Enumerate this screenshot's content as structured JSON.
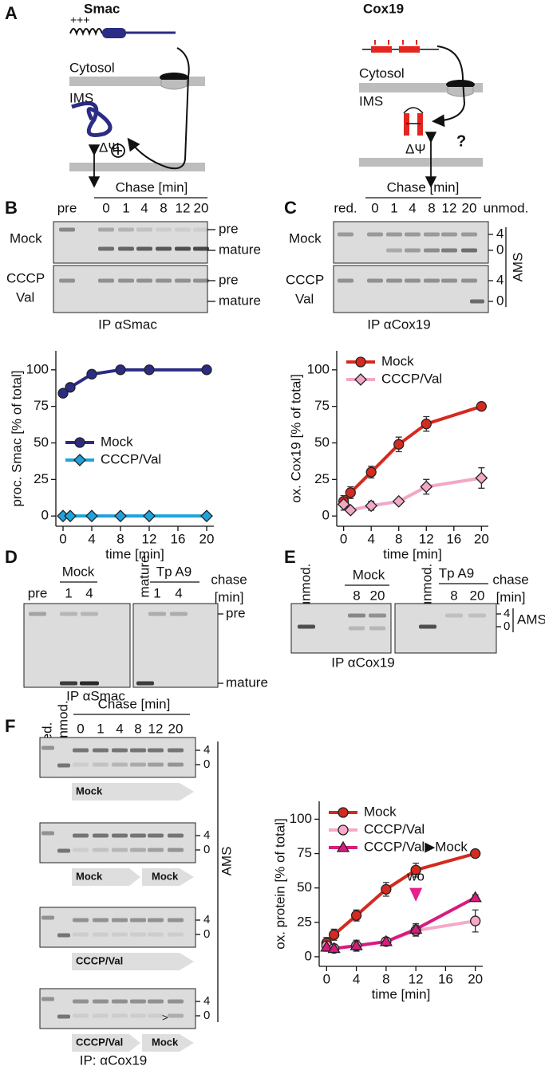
{
  "panels": {
    "A": {
      "label": "A",
      "smac": {
        "title": "Smac",
        "charge": "+++",
        "cytosol": "Cytosol",
        "ims": "IMS",
        "potential": "ΔΨ"
      },
      "cox19": {
        "title": "Cox19",
        "cytosol": "Cytosol",
        "ims": "IMS",
        "potential": "ΔΨ",
        "question": "?"
      }
    },
    "B": {
      "label": "B",
      "chase": "Chase [min]",
      "lanes": [
        "pre",
        "0",
        "1",
        "4",
        "8",
        "12",
        "20"
      ],
      "rows": [
        [
          "Mock"
        ],
        [
          "CCCP",
          "Val"
        ]
      ],
      "bands": [
        "pre",
        "mature"
      ],
      "ip": "IP αSmac"
    },
    "C": {
      "label": "C",
      "chase": "Chase [min]",
      "lanes": [
        "red.",
        "0",
        "1",
        "4",
        "8",
        "12",
        "20",
        "unmod."
      ],
      "rows": [
        [
          "Mock"
        ],
        [
          "CCCP",
          "Val"
        ]
      ],
      "bands": [
        "4",
        "0"
      ],
      "ams": "AMS",
      "ip": "IP αCox19"
    },
    "D": {
      "label": "D",
      "lanes_left": [
        "pre",
        "1",
        "4"
      ],
      "group_left": "Mock",
      "lanes_right": [
        "mature",
        "1",
        "4"
      ],
      "group_right": "Tp A9",
      "chase": [
        "chase",
        "[min]"
      ],
      "bands": [
        "pre",
        "mature"
      ],
      "ip": "IP αSmac"
    },
    "E": {
      "label": "E",
      "lanes_left": [
        "unmod.",
        "8",
        "20"
      ],
      "group_left": "Mock",
      "lanes_right": [
        "unmod.",
        "8",
        "20"
      ],
      "group_right": "Tp A9",
      "chase": [
        "chase",
        "[min]"
      ],
      "bands": [
        "4",
        "0"
      ],
      "ams": "AMS",
      "ip": "IP αCox19"
    },
    "F": {
      "label": "F",
      "lanes": [
        "red.",
        "unmod.",
        "0",
        "1",
        "4",
        "8",
        "12",
        "20"
      ],
      "chase": "Chase [min]",
      "bands": [
        "4",
        "0"
      ],
      "treatments": [
        [
          "Mock"
        ],
        [
          "Mock",
          "Mock"
        ],
        [
          "CCCP/Val"
        ],
        [
          "CCCP/Val",
          "Mock"
        ]
      ],
      "marker": ">",
      "ams": "AMS",
      "ip": "IP: αCox19"
    }
  },
  "chart_data": [
    {
      "type": "line",
      "ylabel": "proc. Smac [% of total]",
      "xlabel": "time [min]",
      "x": [
        0,
        1,
        4,
        8,
        12,
        20
      ],
      "series": [
        {
          "name": "Mock",
          "color": "#2b2c84",
          "marker": "circle",
          "values": [
            84,
            88,
            97,
            100,
            100,
            100
          ]
        },
        {
          "name": "CCCP/Val",
          "color": "#1fa3dc",
          "marker": "diamond",
          "values": [
            0,
            0,
            0,
            0,
            0,
            0
          ]
        }
      ],
      "xlim": [
        -1,
        21
      ],
      "ylim": [
        -7,
        113
      ],
      "xticks": [
        0,
        4,
        8,
        12,
        16,
        20
      ],
      "yticks": [
        0,
        25,
        50,
        75,
        100
      ],
      "legend": "center left"
    },
    {
      "type": "line",
      "ylabel": "ox. Cox19 [% of total]",
      "xlabel": "time [min]",
      "x": [
        0,
        1,
        4,
        8,
        12,
        20
      ],
      "series": [
        {
          "name": "Mock",
          "color": "#d42a20",
          "marker": "circle",
          "values": [
            10,
            16,
            30,
            49,
            63,
            75
          ],
          "errors": [
            4,
            4,
            4,
            5,
            5,
            2
          ]
        },
        {
          "name": "CCCP/Val",
          "color": "#f2a7c6",
          "marker": "diamond",
          "values": [
            8,
            4,
            7,
            10,
            20,
            26
          ],
          "errors": [
            4,
            2,
            3,
            2,
            5,
            7
          ]
        }
      ],
      "xlim": [
        -1,
        21
      ],
      "ylim": [
        -7,
        113
      ],
      "xticks": [
        0,
        4,
        8,
        12,
        16,
        20
      ],
      "yticks": [
        0,
        25,
        50,
        75,
        100
      ],
      "legend": "upper left"
    },
    {
      "type": "line",
      "ylabel": "ox. protein [% of total]",
      "xlabel": "time [min]",
      "x": [
        0,
        1,
        4,
        8,
        12,
        20
      ],
      "series": [
        {
          "name": "Mock",
          "color": "#d42a20",
          "marker": "circle",
          "values": [
            10,
            16,
            30,
            49,
            63,
            75
          ],
          "errors": [
            4,
            4,
            4,
            5,
            5,
            2
          ]
        },
        {
          "name": "CCCP/Val",
          "color": "#f5a9c8",
          "marker": "circle",
          "values": [
            8,
            6,
            8,
            11,
            19,
            26
          ],
          "errors": [
            4,
            2,
            3,
            2,
            4,
            8
          ]
        },
        {
          "name": "CCCP/Val▶Mock",
          "color": "#d81b7f",
          "marker": "triangle",
          "values": [
            7,
            6,
            8,
            11,
            20,
            43
          ],
          "errors": [
            3,
            2,
            4,
            3,
            4,
            2
          ]
        }
      ],
      "xlim": [
        -1,
        21
      ],
      "ylim": [
        -7,
        113
      ],
      "xticks": [
        0,
        4,
        8,
        12,
        16,
        20
      ],
      "yticks": [
        0,
        25,
        50,
        75,
        100
      ],
      "legend": "upper left",
      "annotations": [
        {
          "text": "wo",
          "x": 12,
          "color": "#e6208c"
        }
      ]
    }
  ]
}
